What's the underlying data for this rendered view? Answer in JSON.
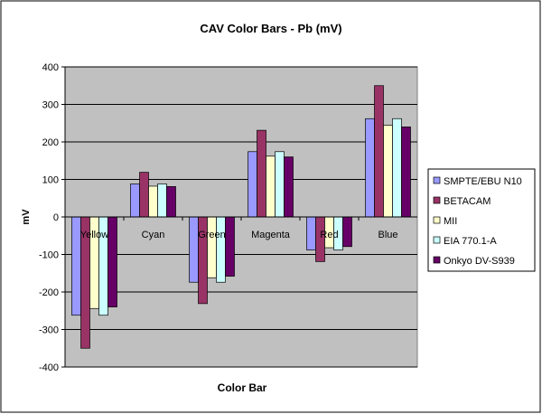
{
  "chart_data": {
    "type": "bar",
    "title": "CAV Color Bars - Pb (mV)",
    "xlabel": "Color Bar",
    "ylabel": "mV",
    "ylim": [
      -400,
      400
    ],
    "yticks": [
      400,
      300,
      200,
      100,
      0,
      -100,
      -200,
      -300,
      -400
    ],
    "grid": true,
    "legend_position": "right",
    "categories": [
      "Yellow",
      "Cyan",
      "Green",
      "Magenta",
      "Red",
      "Blue"
    ],
    "series": [
      {
        "name": "SMPTE/EBU N10",
        "color": "#9999ff",
        "values": [
          -262,
          88,
          -174,
          174,
          -88,
          262
        ]
      },
      {
        "name": "BETACAM",
        "color": "#993366",
        "values": [
          -350,
          119,
          -231,
          231,
          -119,
          350
        ]
      },
      {
        "name": "MII",
        "color": "#ffffcc",
        "values": [
          -244,
          82,
          -162,
          162,
          -82,
          244
        ]
      },
      {
        "name": "EIA 770.1-A",
        "color": "#ccffff",
        "values": [
          -262,
          88,
          -174,
          174,
          -88,
          262
        ]
      },
      {
        "name": "Onkyo DV-S939",
        "color": "#660066",
        "values": [
          -240,
          81,
          -158,
          160,
          -79,
          240
        ]
      }
    ]
  }
}
